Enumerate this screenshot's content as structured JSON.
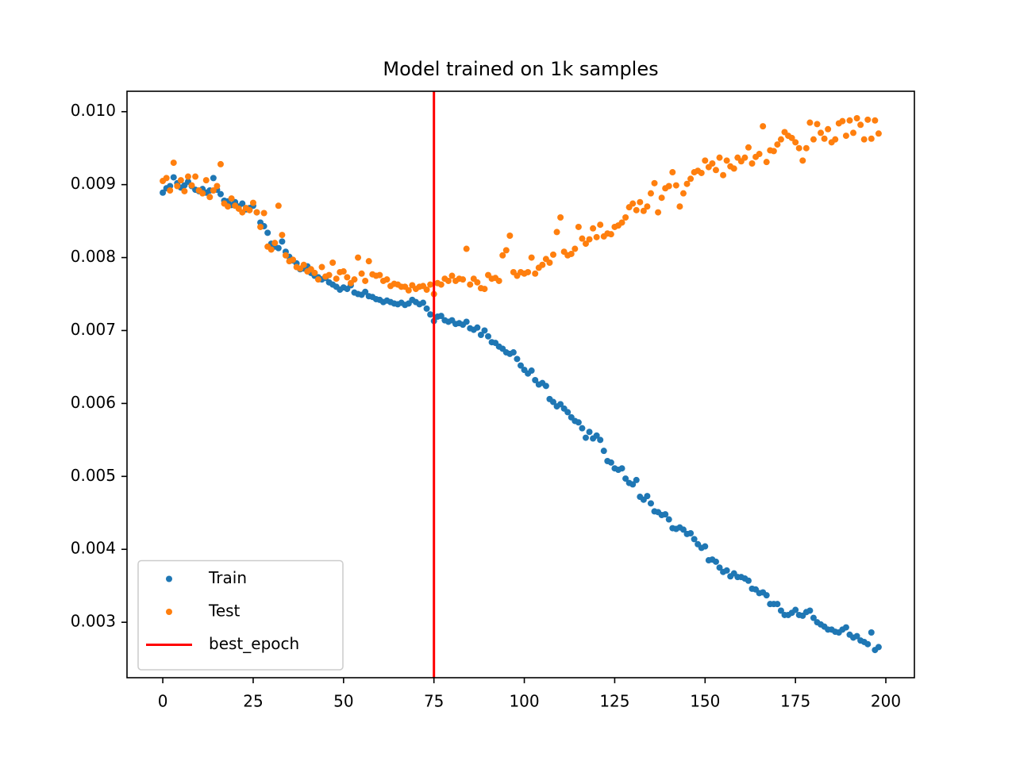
{
  "chart_data": {
    "type": "scatter",
    "title": "Model trained on 1k samples",
    "x": [
      0,
      1,
      2,
      3,
      4,
      5,
      6,
      7,
      8,
      9,
      10,
      11,
      12,
      13,
      14,
      15,
      16,
      17,
      18,
      19,
      20,
      21,
      22,
      23,
      24,
      25,
      26,
      27,
      28,
      29,
      30,
      31,
      32,
      33,
      34,
      35,
      36,
      37,
      38,
      39,
      40,
      41,
      42,
      43,
      44,
      45,
      46,
      47,
      48,
      49,
      50,
      51,
      52,
      53,
      54,
      55,
      56,
      57,
      58,
      59,
      60,
      61,
      62,
      63,
      64,
      65,
      66,
      67,
      68,
      69,
      70,
      71,
      72,
      73,
      74,
      75,
      76,
      77,
      78,
      79,
      80,
      81,
      82,
      83,
      84,
      85,
      86,
      87,
      88,
      89,
      90,
      91,
      92,
      93,
      94,
      95,
      96,
      97,
      98,
      99,
      100,
      101,
      102,
      103,
      104,
      105,
      106,
      107,
      108,
      109,
      110,
      111,
      112,
      113,
      114,
      115,
      116,
      117,
      118,
      119,
      120,
      121,
      122,
      123,
      124,
      125,
      126,
      127,
      128,
      129,
      130,
      131,
      132,
      133,
      134,
      135,
      136,
      137,
      138,
      139,
      140,
      141,
      142,
      143,
      144,
      145,
      146,
      147,
      148,
      149,
      150,
      151,
      152,
      153,
      154,
      155,
      156,
      157,
      158,
      159,
      160,
      161,
      162,
      163,
      164,
      165,
      166,
      167,
      168,
      169,
      170,
      171,
      172,
      173,
      174,
      175,
      176,
      177,
      178,
      179,
      180,
      181,
      182,
      183,
      184,
      185,
      186,
      187,
      188,
      189,
      190,
      191,
      192,
      193,
      194,
      195,
      196,
      197,
      198
    ],
    "series": [
      {
        "name": "Train",
        "color": "#1f77b4",
        "values": [
          0.00889,
          0.00895,
          0.00898,
          0.0091,
          0.00902,
          0.00896,
          0.00899,
          0.00904,
          0.00898,
          0.00893,
          0.00891,
          0.00894,
          0.00889,
          0.00892,
          0.00909,
          0.00893,
          0.00887,
          0.00878,
          0.00877,
          0.00872,
          0.00876,
          0.0087,
          0.00874,
          0.00866,
          0.00868,
          0.00871,
          0.00862,
          0.00848,
          0.00843,
          0.00834,
          0.00819,
          0.00815,
          0.00813,
          0.00822,
          0.00808,
          0.00801,
          0.00796,
          0.00792,
          0.00784,
          0.00785,
          0.00788,
          0.00779,
          0.00775,
          0.00773,
          0.0077,
          0.00772,
          0.00766,
          0.00763,
          0.0076,
          0.00756,
          0.00759,
          0.00757,
          0.00762,
          0.00752,
          0.0075,
          0.00749,
          0.00753,
          0.00747,
          0.00746,
          0.00743,
          0.00742,
          0.00739,
          0.00741,
          0.00739,
          0.00737,
          0.00736,
          0.00738,
          0.00735,
          0.00737,
          0.00742,
          0.00739,
          0.00736,
          0.00738,
          0.0073,
          0.00722,
          0.00713,
          0.00719,
          0.0072,
          0.00714,
          0.00712,
          0.00714,
          0.00709,
          0.0071,
          0.00708,
          0.00712,
          0.00703,
          0.00701,
          0.00704,
          0.00694,
          0.007,
          0.00692,
          0.00684,
          0.00683,
          0.00678,
          0.00675,
          0.0067,
          0.00668,
          0.0067,
          0.00661,
          0.00652,
          0.00646,
          0.00641,
          0.00645,
          0.00632,
          0.00626,
          0.00628,
          0.00624,
          0.00606,
          0.00602,
          0.00596,
          0.00599,
          0.00593,
          0.00588,
          0.00581,
          0.00576,
          0.00574,
          0.00566,
          0.00553,
          0.00561,
          0.00552,
          0.00556,
          0.0055,
          0.00535,
          0.00521,
          0.00519,
          0.00511,
          0.00509,
          0.00511,
          0.00497,
          0.00491,
          0.00489,
          0.00495,
          0.00472,
          0.00468,
          0.00473,
          0.00463,
          0.00452,
          0.00451,
          0.00447,
          0.00448,
          0.00441,
          0.00429,
          0.00428,
          0.0043,
          0.00427,
          0.00421,
          0.00422,
          0.00414,
          0.00407,
          0.00402,
          0.00404,
          0.00385,
          0.00386,
          0.00383,
          0.00375,
          0.00369,
          0.00371,
          0.00363,
          0.00367,
          0.00362,
          0.00362,
          0.0036,
          0.00357,
          0.00346,
          0.00345,
          0.0034,
          0.00341,
          0.00337,
          0.00325,
          0.00325,
          0.00325,
          0.00316,
          0.0031,
          0.0031,
          0.00313,
          0.00317,
          0.0031,
          0.00309,
          0.00314,
          0.00316,
          0.00306,
          0.003,
          0.00297,
          0.00294,
          0.0029,
          0.0029,
          0.00287,
          0.00286,
          0.0029,
          0.00293,
          0.00283,
          0.00279,
          0.00281,
          0.00275,
          0.00273,
          0.0027,
          0.00286,
          0.00262,
          0.00266
        ]
      },
      {
        "name": "Test",
        "color": "#ff7f0e",
        "values": [
          0.00905,
          0.00909,
          0.00892,
          0.0093,
          0.00898,
          0.00906,
          0.00891,
          0.00911,
          0.00899,
          0.00911,
          0.00892,
          0.00888,
          0.00906,
          0.00883,
          0.00892,
          0.00898,
          0.00928,
          0.00874,
          0.0087,
          0.00881,
          0.00871,
          0.00867,
          0.00862,
          0.00868,
          0.00865,
          0.00875,
          0.00862,
          0.00842,
          0.00861,
          0.00815,
          0.00811,
          0.0082,
          0.00871,
          0.00831,
          0.00803,
          0.00795,
          0.00797,
          0.00787,
          0.00785,
          0.0079,
          0.00781,
          0.00784,
          0.00779,
          0.0077,
          0.00787,
          0.00774,
          0.00776,
          0.00793,
          0.00771,
          0.0078,
          0.00781,
          0.00773,
          0.00765,
          0.0077,
          0.008,
          0.00778,
          0.00768,
          0.00795,
          0.00777,
          0.00775,
          0.00776,
          0.00768,
          0.0077,
          0.00761,
          0.00764,
          0.00763,
          0.0076,
          0.0076,
          0.00755,
          0.00762,
          0.00757,
          0.0076,
          0.00761,
          0.00756,
          0.00763,
          0.0075,
          0.00765,
          0.00763,
          0.00771,
          0.00768,
          0.00775,
          0.00768,
          0.00771,
          0.0077,
          0.00812,
          0.00763,
          0.00771,
          0.00766,
          0.00758,
          0.00757,
          0.00776,
          0.00771,
          0.00772,
          0.00768,
          0.00803,
          0.0081,
          0.0083,
          0.0078,
          0.00775,
          0.0078,
          0.00778,
          0.0078,
          0.008,
          0.00778,
          0.00786,
          0.0079,
          0.00798,
          0.00793,
          0.00804,
          0.00835,
          0.00855,
          0.00808,
          0.00803,
          0.00805,
          0.00812,
          0.00842,
          0.00826,
          0.00819,
          0.00825,
          0.0084,
          0.00828,
          0.00845,
          0.00829,
          0.00833,
          0.00832,
          0.00842,
          0.00844,
          0.00848,
          0.00855,
          0.00869,
          0.00874,
          0.00865,
          0.00876,
          0.00864,
          0.0087,
          0.00888,
          0.00902,
          0.00862,
          0.00882,
          0.00895,
          0.00898,
          0.00917,
          0.00899,
          0.0087,
          0.00888,
          0.00901,
          0.00908,
          0.00917,
          0.00919,
          0.00916,
          0.00933,
          0.00924,
          0.00929,
          0.0092,
          0.00937,
          0.00913,
          0.00933,
          0.00925,
          0.00922,
          0.00937,
          0.00932,
          0.00937,
          0.00951,
          0.00929,
          0.00938,
          0.00942,
          0.0098,
          0.00931,
          0.00947,
          0.00946,
          0.00955,
          0.00962,
          0.00972,
          0.00967,
          0.00964,
          0.00958,
          0.0095,
          0.00933,
          0.0095,
          0.00985,
          0.00962,
          0.00983,
          0.00971,
          0.00963,
          0.00976,
          0.00958,
          0.00962,
          0.00984,
          0.00987,
          0.00967,
          0.00988,
          0.00971,
          0.00991,
          0.00982,
          0.00962,
          0.00989,
          0.00963,
          0.00988,
          0.0097
        ]
      }
    ],
    "vlines": [
      {
        "name": "best_epoch",
        "x": 75,
        "color": "#ff0000"
      }
    ],
    "xlim": [
      -9.9,
      207.9
    ],
    "xticks": [
      0,
      25,
      50,
      75,
      100,
      125,
      150,
      175,
      200
    ],
    "ylim": [
      0.00224,
      0.01028
    ],
    "yticks": [
      0.003,
      0.004,
      0.005,
      0.006,
      0.007,
      0.008,
      0.009,
      {
        "value": 0.01,
        "label": "0.010"
      }
    ],
    "legend": "lower left"
  }
}
